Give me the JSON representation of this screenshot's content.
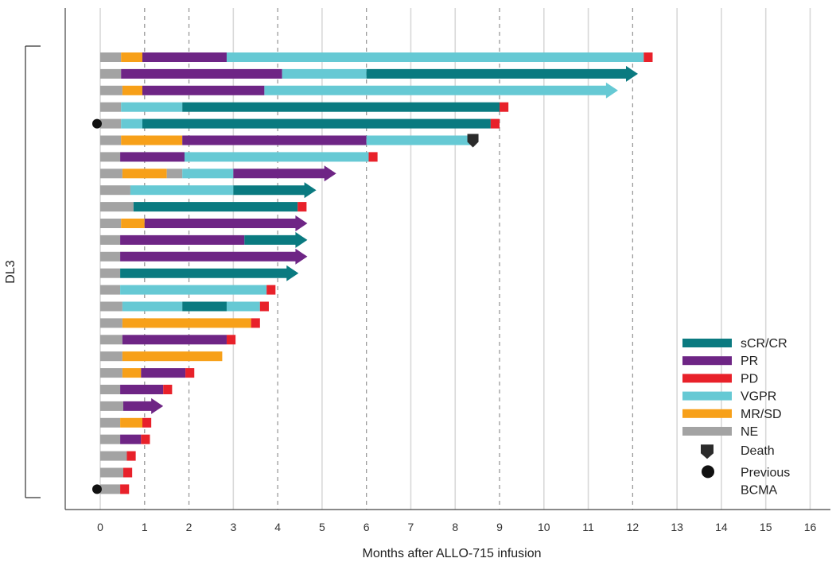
{
  "chart_data": {
    "type": "swimmer",
    "xlabel": "Months after ALLO-715 infusion",
    "xlim": [
      0,
      16
    ],
    "xticks": [
      "0",
      "1",
      "2",
      "3",
      "4",
      "5",
      "6",
      "7",
      "8",
      "9",
      "10",
      "11",
      "12",
      "13",
      "14",
      "15",
      "16"
    ],
    "dashed_gridlines_at": [
      1,
      2,
      4,
      6,
      9,
      12
    ],
    "group_label": "DL3",
    "colors": {
      "sCR/CR": "#0a7a80",
      "PR": "#6e2585",
      "PD": "#e8212a",
      "VGPR": "#66c9d4",
      "MR/SD": "#f7a019",
      "NE": "#a3a3a3",
      "Death": "#2b2b2b",
      "Previous BCMA": "#111111"
    },
    "legend": [
      "sCR/CR",
      "PR",
      "PD",
      "VGPR",
      "MR/SD",
      "NE",
      "Death",
      "Previous BCMA"
    ],
    "legend_labels": {
      "sCR/CR": "sCR/CR",
      "PR": "PR",
      "PD": "PD",
      "VGPR": "VGPR",
      "MR/SD": "MR/SD",
      "NE": "NE",
      "Death": "Death",
      "Previous BCMA": [
        "Previous",
        "BCMA"
      ]
    },
    "patients": [
      {
        "segments": [
          [
            "NE",
            0,
            0.47
          ],
          [
            "MR/SD",
            0.47,
            0.95
          ],
          [
            "PR",
            0.95,
            2.85
          ],
          [
            "VGPR",
            2.85,
            12.25
          ],
          [
            "PD",
            12.25,
            12.45
          ]
        ],
        "arrow": false
      },
      {
        "segments": [
          [
            "NE",
            0,
            0.47
          ],
          [
            "PR",
            0.47,
            4.1
          ],
          [
            "VGPR",
            4.1,
            6.0
          ],
          [
            "sCR/CR",
            6.0,
            11.85
          ]
        ],
        "arrow": true
      },
      {
        "segments": [
          [
            "NE",
            0,
            0.5
          ],
          [
            "MR/SD",
            0.5,
            0.95
          ],
          [
            "PR",
            0.95,
            3.7
          ],
          [
            "VGPR",
            3.7,
            11.4
          ]
        ],
        "arrow": true
      },
      {
        "segments": [
          [
            "NE",
            0,
            0.47
          ],
          [
            "VGPR",
            0.47,
            1.85
          ],
          [
            "sCR/CR",
            1.85,
            9.0
          ],
          [
            "PD",
            9.0,
            9.2
          ]
        ],
        "arrow": false
      },
      {
        "segments": [
          [
            "NE",
            0,
            0.47
          ],
          [
            "VGPR",
            0.47,
            0.95
          ],
          [
            "sCR/CR",
            0.95,
            8.8
          ],
          [
            "PD",
            8.8,
            9.0
          ]
        ],
        "arrow": false,
        "previous_bcma": true
      },
      {
        "segments": [
          [
            "NE",
            0,
            0.47
          ],
          [
            "MR/SD",
            0.47,
            1.85
          ],
          [
            "PR",
            1.85,
            6.0
          ],
          [
            "VGPR",
            6.0,
            8.35
          ]
        ],
        "arrow": false,
        "death": 8.4
      },
      {
        "segments": [
          [
            "NE",
            0,
            0.45
          ],
          [
            "PR",
            0.45,
            1.9
          ],
          [
            "VGPR",
            1.9,
            6.05
          ],
          [
            "PD",
            6.05,
            6.25
          ]
        ],
        "arrow": false
      },
      {
        "segments": [
          [
            "NE",
            0,
            0.5
          ],
          [
            "MR/SD",
            0.5,
            1.5
          ],
          [
            "NE",
            1.5,
            1.85
          ],
          [
            "VGPR",
            1.85,
            3.0
          ],
          [
            "PR",
            3.0,
            5.05
          ]
        ],
        "arrow": true
      },
      {
        "segments": [
          [
            "NE",
            0,
            0.68
          ],
          [
            "VGPR",
            0.68,
            3.0
          ],
          [
            "sCR/CR",
            3.0,
            4.6
          ]
        ],
        "arrow": true
      },
      {
        "segments": [
          [
            "NE",
            0,
            0.75
          ],
          [
            "sCR/CR",
            0.75,
            4.45
          ],
          [
            "PD",
            4.45,
            4.65
          ]
        ],
        "arrow": false
      },
      {
        "segments": [
          [
            "NE",
            0,
            0.47
          ],
          [
            "MR/SD",
            0.47,
            1.0
          ],
          [
            "PR",
            1.0,
            4.4
          ]
        ],
        "arrow": true
      },
      {
        "segments": [
          [
            "NE",
            0,
            0.45
          ],
          [
            "PR",
            0.45,
            3.25
          ],
          [
            "sCR/CR",
            3.25,
            4.4
          ]
        ],
        "arrow": true
      },
      {
        "segments": [
          [
            "NE",
            0,
            0.45
          ],
          [
            "PR",
            0.45,
            4.4
          ]
        ],
        "arrow": true
      },
      {
        "segments": [
          [
            "NE",
            0,
            0.45
          ],
          [
            "sCR/CR",
            0.45,
            4.2
          ]
        ],
        "arrow": true
      },
      {
        "segments": [
          [
            "NE",
            0,
            0.45
          ],
          [
            "VGPR",
            0.45,
            3.75
          ],
          [
            "PD",
            3.75,
            3.95
          ]
        ],
        "arrow": false
      },
      {
        "segments": [
          [
            "NE",
            0,
            0.5
          ],
          [
            "VGPR",
            0.5,
            1.85
          ],
          [
            "sCR/CR",
            1.85,
            2.85
          ],
          [
            "VGPR",
            2.85,
            3.6
          ],
          [
            "PD",
            3.6,
            3.8
          ]
        ],
        "arrow": false
      },
      {
        "segments": [
          [
            "NE",
            0,
            0.5
          ],
          [
            "MR/SD",
            0.5,
            3.4
          ],
          [
            "PD",
            3.4,
            3.6
          ]
        ],
        "arrow": false
      },
      {
        "segments": [
          [
            "NE",
            0,
            0.5
          ],
          [
            "PR",
            0.5,
            2.85
          ],
          [
            "PD",
            2.85,
            3.05
          ]
        ],
        "arrow": false
      },
      {
        "segments": [
          [
            "NE",
            0,
            0.5
          ],
          [
            "MR/SD",
            0.5,
            2.75
          ]
        ],
        "arrow": false
      },
      {
        "segments": [
          [
            "NE",
            0,
            0.5
          ],
          [
            "MR/SD",
            0.5,
            0.92
          ],
          [
            "PR",
            0.92,
            1.92
          ],
          [
            "PD",
            1.92,
            2.12
          ]
        ],
        "arrow": false
      },
      {
        "segments": [
          [
            "NE",
            0,
            0.45
          ],
          [
            "PR",
            0.45,
            1.42
          ],
          [
            "PD",
            1.42,
            1.62
          ]
        ],
        "arrow": false
      },
      {
        "segments": [
          [
            "NE",
            0,
            0.52
          ],
          [
            "PR",
            0.52,
            1.15
          ]
        ],
        "arrow": true
      },
      {
        "segments": [
          [
            "NE",
            0,
            0.45
          ],
          [
            "MR/SD",
            0.45,
            0.95
          ],
          [
            "PD",
            0.95,
            1.15
          ]
        ],
        "arrow": false
      },
      {
        "segments": [
          [
            "NE",
            0,
            0.45
          ],
          [
            "PR",
            0.45,
            0.92
          ],
          [
            "PD",
            0.92,
            1.12
          ]
        ],
        "arrow": false
      },
      {
        "segments": [
          [
            "NE",
            0,
            0.6
          ],
          [
            "PD",
            0.6,
            0.8
          ]
        ],
        "arrow": false
      },
      {
        "segments": [
          [
            "NE",
            0,
            0.52
          ],
          [
            "PD",
            0.52,
            0.72
          ]
        ],
        "arrow": false
      },
      {
        "segments": [
          [
            "NE",
            0,
            0.45
          ],
          [
            "PD",
            0.45,
            0.65
          ]
        ],
        "arrow": false,
        "previous_bcma": true
      }
    ]
  }
}
